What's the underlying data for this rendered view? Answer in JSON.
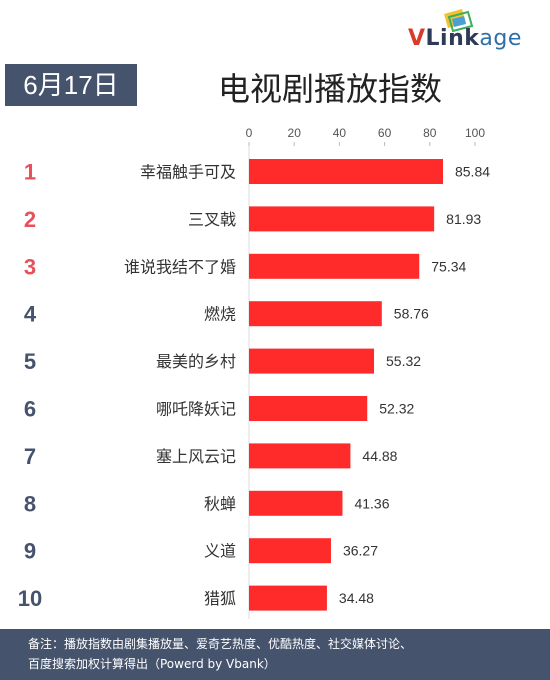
{
  "header": {
    "date": "6月17日",
    "title": "电视剧播放指数",
    "logo": {
      "v": "V",
      "link": "Link",
      "age": "age"
    }
  },
  "colors": {
    "bar": "#ff2b2b",
    "rank_top": "#e8505b",
    "rank_rest": "#45536c",
    "band": "#45536c"
  },
  "chart_data": {
    "type": "bar",
    "orientation": "horizontal",
    "categories": [
      "幸福触手可及",
      "三叉戟",
      "谁说我结不了婚",
      "燃烧",
      "最美的乡村",
      "哪吒降妖记",
      "塞上风云记",
      "秋蝉",
      "义道",
      "猎狐"
    ],
    "ranks": [
      "1",
      "2",
      "3",
      "4",
      "5",
      "6",
      "7",
      "8",
      "9",
      "10"
    ],
    "values": [
      85.84,
      81.93,
      75.34,
      58.76,
      55.32,
      52.32,
      44.88,
      41.36,
      36.27,
      34.48
    ],
    "value_labels": [
      "85.84",
      "81.93",
      "75.34",
      "58.76",
      "55.32",
      "52.32",
      "44.88",
      "41.36",
      "36.27",
      "34.48"
    ],
    "xlim": [
      0,
      100
    ],
    "xticks": [
      "0",
      "20",
      "40",
      "60",
      "80",
      "100"
    ],
    "axis_position": "top",
    "grid": false
  },
  "footnote": {
    "line1": "备注：播放指数由剧集播放量、爱奇艺热度、优酷热度、社交媒体讨论、",
    "line2": "百度搜索加权计算得出（Powerd by Vbank）"
  }
}
